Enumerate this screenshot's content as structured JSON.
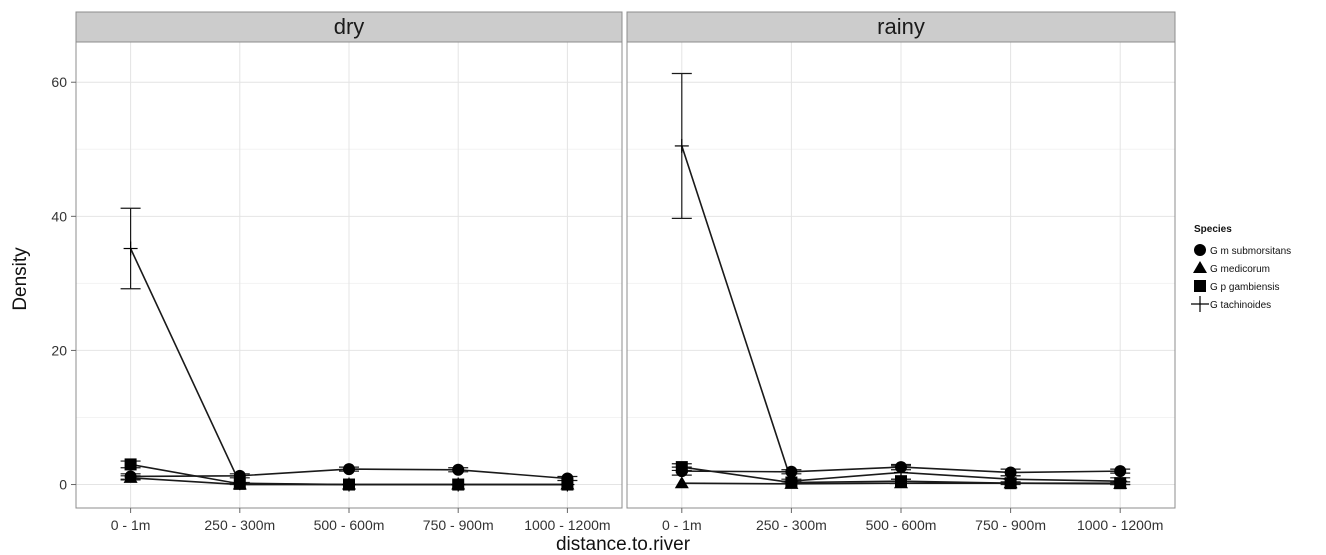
{
  "chart_data": {
    "type": "line",
    "xlabel": "distance.to.river",
    "ylabel": "Density",
    "categories": [
      "0 - 1m",
      "250 - 300m",
      "500 - 600m",
      "750 - 900m",
      "1000 - 1200m"
    ],
    "ylim": [
      -3.5,
      66
    ],
    "yticks": [
      0,
      20,
      40,
      60
    ],
    "grid": true,
    "legend": {
      "title": "Species",
      "placement": "right",
      "entries": [
        {
          "label": "G m submorsitans",
          "shape": "circle"
        },
        {
          "label": "G medicorum",
          "shape": "triangle"
        },
        {
          "label": "G p gambiensis",
          "shape": "square"
        },
        {
          "label": "G tachinoides",
          "shape": "cross"
        }
      ]
    },
    "panels": [
      {
        "title": "dry",
        "series": [
          {
            "name": "G m submorsitans",
            "shape": "circle",
            "values": [
              1.2,
              1.3,
              2.3,
              2.2,
              0.9
            ],
            "errors": [
              0.4,
              0.3,
              0.3,
              0.3,
              0.3
            ]
          },
          {
            "name": "G medicorum",
            "shape": "triangle",
            "values": [
              1.0,
              0.0,
              0.0,
              0.0,
              0.0
            ],
            "errors": [
              0.3,
              0,
              0,
              0,
              0
            ]
          },
          {
            "name": "G p gambiensis",
            "shape": "square",
            "values": [
              3.0,
              0.1,
              0.0,
              0.0,
              0.0
            ],
            "errors": [
              0.5,
              0.1,
              0,
              0,
              0
            ]
          },
          {
            "name": "G tachinoides",
            "shape": "cross",
            "values": [
              35.2,
              0.2,
              0.0,
              0.0,
              0.0
            ],
            "errors": [
              6.0,
              0.1,
              0,
              0,
              0
            ]
          }
        ]
      },
      {
        "title": "rainy",
        "series": [
          {
            "name": "G m submorsitans",
            "shape": "circle",
            "values": [
              2.0,
              1.9,
              2.6,
              1.8,
              2.0
            ],
            "errors": [
              0.6,
              0.3,
              0.4,
              0.5,
              0.3
            ]
          },
          {
            "name": "G medicorum",
            "shape": "triangle",
            "values": [
              0.2,
              0.1,
              0.2,
              0.2,
              0.1
            ],
            "errors": [
              0,
              0,
              0,
              0,
              0
            ]
          },
          {
            "name": "G p gambiensis",
            "shape": "square",
            "values": [
              2.6,
              0.3,
              0.5,
              0.2,
              0.2
            ],
            "errors": [
              0.5,
              0.2,
              0.3,
              0.2,
              0.2
            ]
          },
          {
            "name": "G tachinoides",
            "shape": "cross",
            "values": [
              50.5,
              0.5,
              1.8,
              0.8,
              0.5
            ],
            "errors": [
              10.8,
              0.3,
              1.0,
              0.5,
              0.5
            ]
          }
        ]
      }
    ]
  }
}
